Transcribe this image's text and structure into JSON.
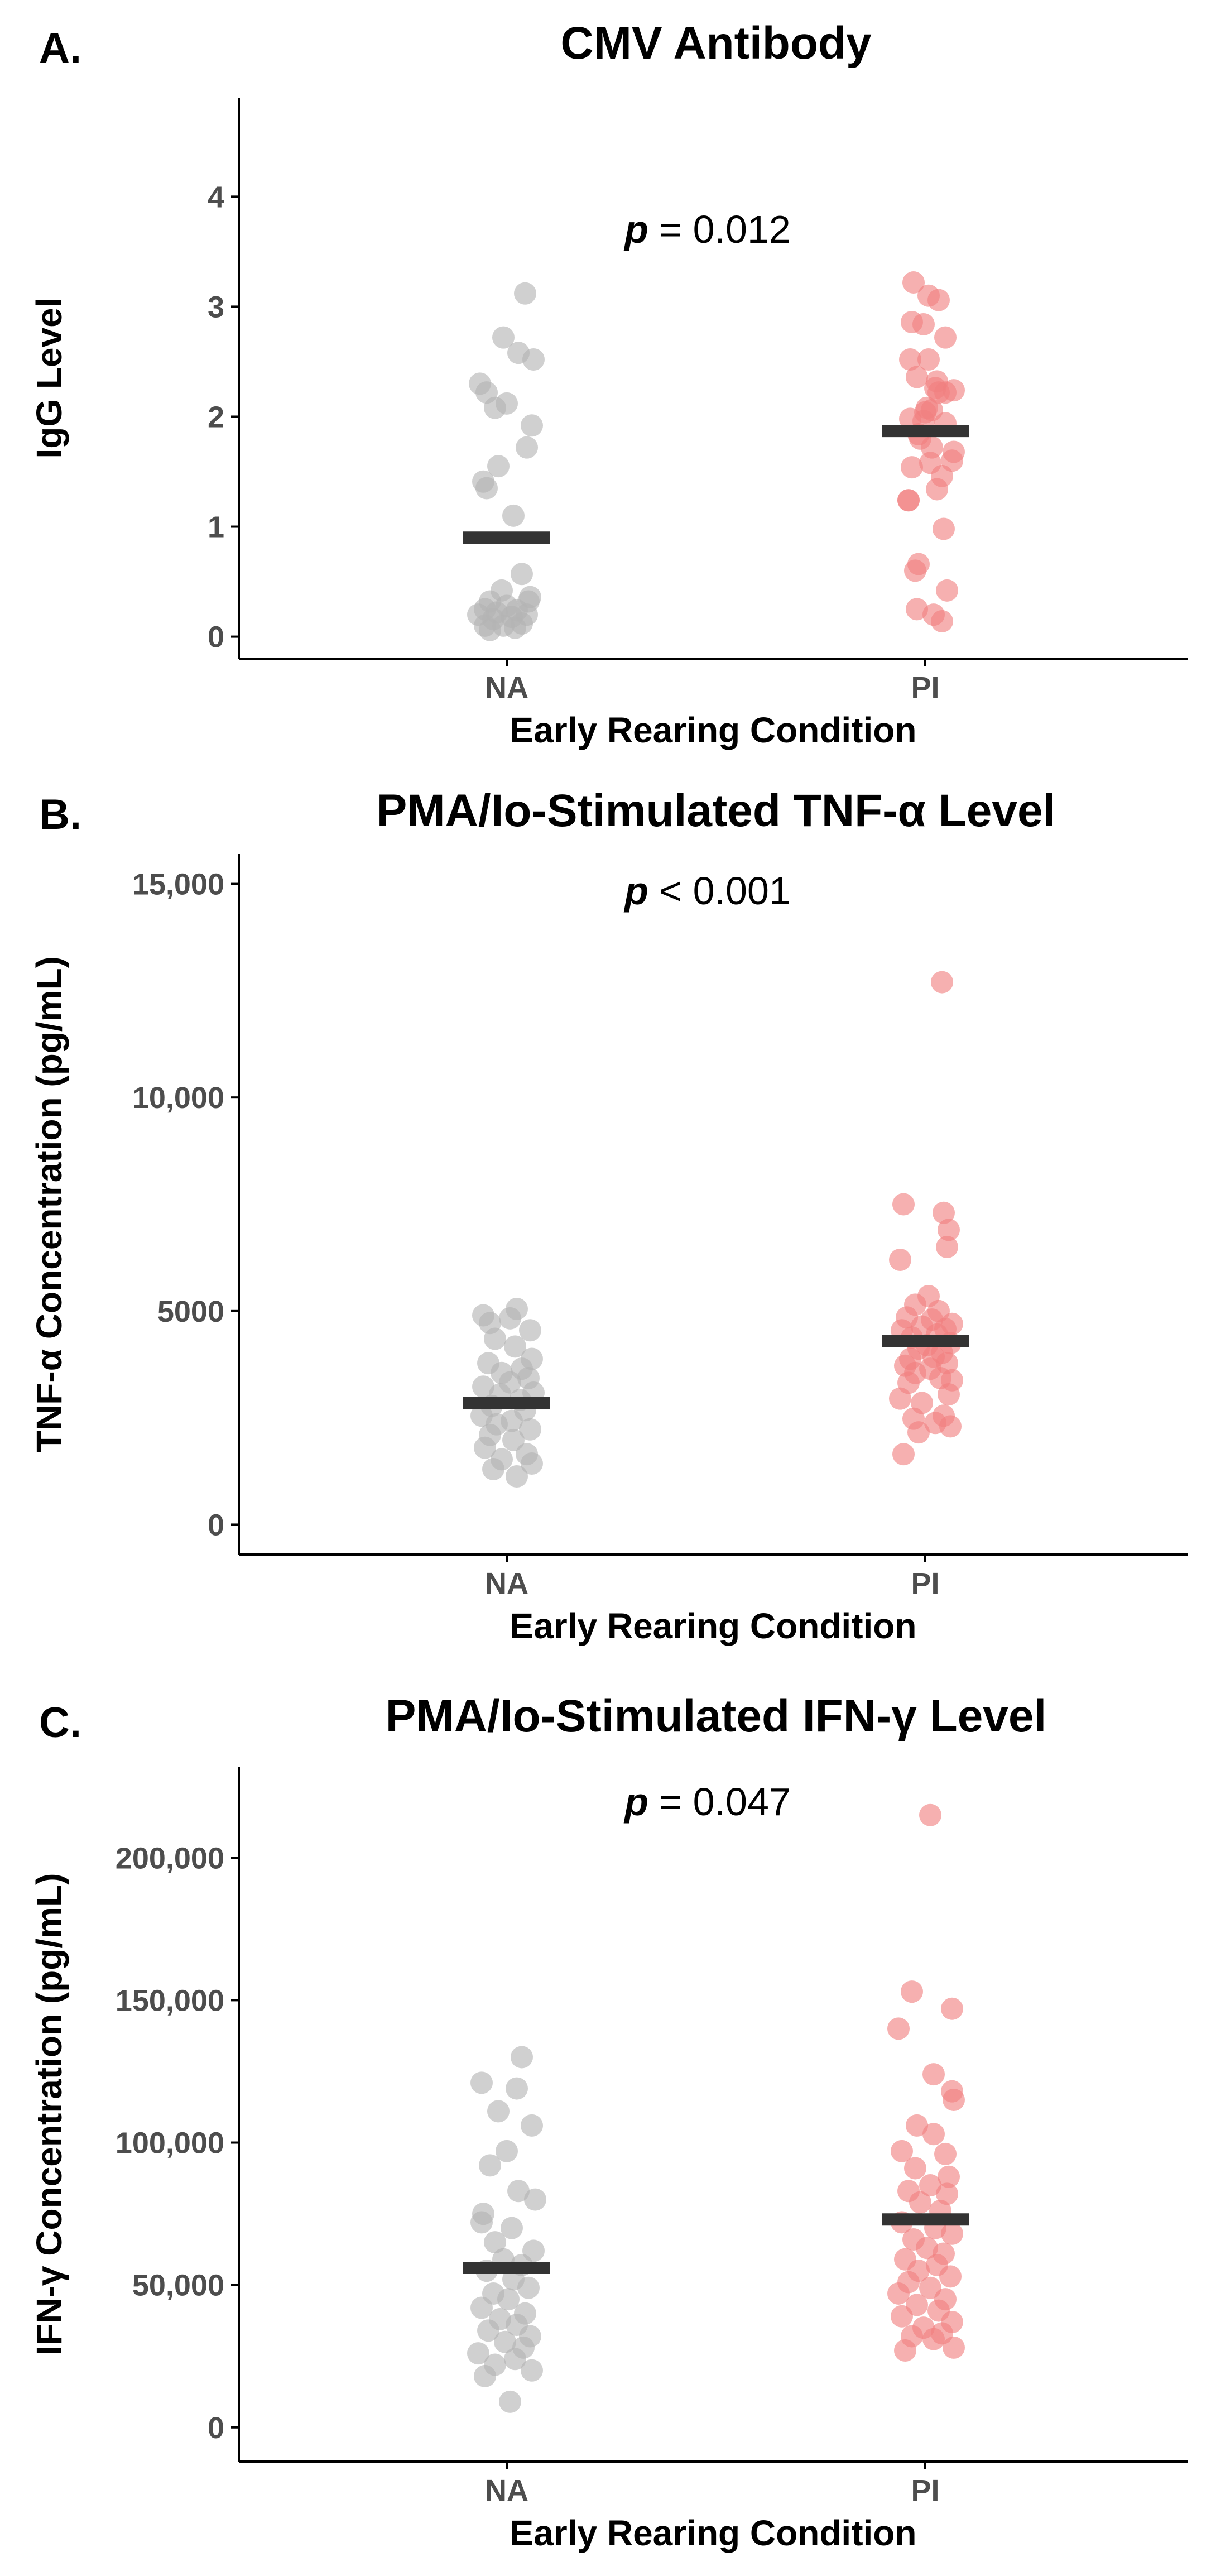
{
  "colors": {
    "NA": "#b3b3b3",
    "PI": "#f08080",
    "mean": "#333333"
  },
  "chart_data": [
    {
      "type": "scatter",
      "panel_label": "A.",
      "title": "CMV Antibody",
      "xlabel": "Early Rearing Condition",
      "ylabel": "IgG Level",
      "categories": [
        "NA",
        "PI"
      ],
      "ylim": [
        -0.2,
        4.9
      ],
      "yticks": [
        0,
        1,
        2,
        3,
        4
      ],
      "ytick_labels": [
        "0",
        "1",
        "2",
        "3",
        "4"
      ],
      "p_label": "p",
      "p_value": " = 0.012",
      "means": [
        0.9,
        1.87
      ],
      "series": [
        {
          "name": "NA",
          "points": [
            [
              -0.16,
              2.3
            ],
            [
              0.11,
              3.12
            ],
            [
              -0.02,
              2.72
            ],
            [
              0.07,
              2.58
            ],
            [
              0.16,
              2.52
            ],
            [
              -0.12,
              2.22
            ],
            [
              0.0,
              2.12
            ],
            [
              -0.07,
              2.08
            ],
            [
              0.15,
              1.92
            ],
            [
              0.12,
              1.72
            ],
            [
              -0.05,
              1.55
            ],
            [
              -0.14,
              1.41
            ],
            [
              -0.12,
              1.35
            ],
            [
              0.04,
              1.1
            ],
            [
              0.09,
              0.57
            ],
            [
              -0.03,
              0.42
            ],
            [
              0.14,
              0.36
            ],
            [
              0.13,
              0.32
            ],
            [
              -0.1,
              0.32
            ],
            [
              0.0,
              0.28
            ],
            [
              -0.13,
              0.25
            ],
            [
              0.06,
              0.24
            ],
            [
              -0.06,
              0.22
            ],
            [
              0.12,
              0.2
            ],
            [
              -0.17,
              0.2
            ],
            [
              0.03,
              0.18
            ],
            [
              -0.08,
              0.16
            ],
            [
              0.09,
              0.12
            ],
            [
              -0.13,
              0.1
            ],
            [
              -0.02,
              0.1
            ],
            [
              0.05,
              0.08
            ],
            [
              -0.1,
              0.06
            ]
          ]
        },
        {
          "name": "PI",
          "points": [
            [
              -0.07,
              3.22
            ],
            [
              0.02,
              3.1
            ],
            [
              0.08,
              3.06
            ],
            [
              -0.08,
              2.86
            ],
            [
              -0.01,
              2.84
            ],
            [
              0.12,
              2.72
            ],
            [
              -0.09,
              2.52
            ],
            [
              0.02,
              2.52
            ],
            [
              -0.05,
              2.36
            ],
            [
              0.07,
              2.32
            ],
            [
              0.06,
              2.26
            ],
            [
              0.17,
              2.24
            ],
            [
              0.08,
              2.22
            ],
            [
              0.12,
              2.22
            ],
            [
              0.01,
              2.08
            ],
            [
              0.04,
              2.06
            ],
            [
              0.0,
              2.04
            ],
            [
              -0.09,
              1.98
            ],
            [
              -0.01,
              1.96
            ],
            [
              0.12,
              1.94
            ],
            [
              -0.04,
              1.84
            ],
            [
              -0.03,
              1.8
            ],
            [
              0.04,
              1.72
            ],
            [
              0.17,
              1.68
            ],
            [
              0.16,
              1.6
            ],
            [
              0.03,
              1.58
            ],
            [
              -0.08,
              1.54
            ],
            [
              0.1,
              1.46
            ],
            [
              0.07,
              1.34
            ],
            [
              -0.1,
              1.24
            ],
            [
              -0.1,
              1.24
            ],
            [
              0.11,
              0.98
            ],
            [
              -0.04,
              0.66
            ],
            [
              -0.06,
              0.6
            ],
            [
              0.13,
              0.42
            ],
            [
              -0.05,
              0.25
            ],
            [
              0.05,
              0.2
            ],
            [
              0.1,
              0.14
            ]
          ]
        }
      ]
    },
    {
      "type": "scatter",
      "panel_label": "B.",
      "title": "PMA/Io-Stimulated TNF-α Level",
      "xlabel": "Early Rearing Condition",
      "ylabel": "TNF-α Concentration (pg/mL)",
      "categories": [
        "NA",
        "PI"
      ],
      "ylim": [
        -700,
        15700
      ],
      "yticks": [
        0,
        5000,
        10000,
        15000
      ],
      "ytick_labels": [
        "0",
        "5000",
        "10,000",
        "15,000"
      ],
      "p_label": "p",
      "p_value": " < 0.001",
      "means": [
        2850,
        4300
      ],
      "series": [
        {
          "name": "NA",
          "points": [
            [
              0.06,
              5050
            ],
            [
              -0.14,
              4900
            ],
            [
              0.02,
              4830
            ],
            [
              -0.1,
              4720
            ],
            [
              0.14,
              4550
            ],
            [
              -0.07,
              4350
            ],
            [
              0.05,
              4170
            ],
            [
              0.15,
              3880
            ],
            [
              -0.11,
              3780
            ],
            [
              0.09,
              3650
            ],
            [
              -0.03,
              3550
            ],
            [
              0.13,
              3430
            ],
            [
              0.02,
              3330
            ],
            [
              -0.14,
              3230
            ],
            [
              0.16,
              3090
            ],
            [
              -0.04,
              3050
            ],
            [
              0.08,
              2920
            ],
            [
              -0.09,
              2780
            ],
            [
              0.11,
              2680
            ],
            [
              -0.15,
              2550
            ],
            [
              0.03,
              2430
            ],
            [
              -0.06,
              2350
            ],
            [
              0.14,
              2230
            ],
            [
              -0.1,
              2100
            ],
            [
              0.04,
              1980
            ],
            [
              -0.13,
              1800
            ],
            [
              0.12,
              1650
            ],
            [
              -0.03,
              1530
            ],
            [
              0.15,
              1430
            ],
            [
              -0.08,
              1300
            ],
            [
              0.06,
              1130
            ]
          ]
        },
        {
          "name": "PI",
          "points": [
            [
              0.1,
              12700
            ],
            [
              -0.13,
              7500
            ],
            [
              0.11,
              7300
            ],
            [
              0.14,
              6900
            ],
            [
              -0.15,
              6200
            ],
            [
              0.13,
              6500
            ],
            [
              0.02,
              5350
            ],
            [
              -0.06,
              5150
            ],
            [
              0.08,
              5000
            ],
            [
              -0.11,
              4850
            ],
            [
              0.04,
              4800
            ],
            [
              0.16,
              4700
            ],
            [
              -0.02,
              4640
            ],
            [
              0.12,
              4580
            ],
            [
              -0.14,
              4550
            ],
            [
              0.07,
              4450
            ],
            [
              -0.08,
              4380
            ],
            [
              0.15,
              4250
            ],
            [
              0.01,
              4200
            ],
            [
              -0.04,
              4120
            ],
            [
              0.1,
              4020
            ],
            [
              0.05,
              3930
            ],
            [
              -0.09,
              3880
            ],
            [
              0.13,
              3780
            ],
            [
              -0.12,
              3720
            ],
            [
              0.03,
              3650
            ],
            [
              -0.06,
              3550
            ],
            [
              0.09,
              3430
            ],
            [
              0.16,
              3380
            ],
            [
              -0.1,
              3320
            ],
            [
              0.14,
              3050
            ],
            [
              -0.15,
              2950
            ],
            [
              -0.02,
              2850
            ],
            [
              0.11,
              2550
            ],
            [
              -0.07,
              2480
            ],
            [
              0.06,
              2380
            ],
            [
              0.15,
              2300
            ],
            [
              -0.04,
              2160
            ],
            [
              -0.13,
              1650
            ]
          ]
        }
      ]
    },
    {
      "type": "scatter",
      "panel_label": "C.",
      "title": "PMA/Io-Stimulated IFN-γ Level",
      "xlabel": "Early Rearing Condition",
      "ylabel": "IFN-γ Concentration (pg/mL)",
      "categories": [
        "NA",
        "PI"
      ],
      "ylim": [
        -12000,
        232000
      ],
      "yticks": [
        0,
        50000,
        100000,
        150000,
        200000
      ],
      "ytick_labels": [
        "0",
        "50,000",
        "100,000",
        "150,000",
        "200,000"
      ],
      "p_label": "p",
      "p_value": " = 0.047",
      "means": [
        56000,
        73000
      ],
      "series": [
        {
          "name": "NA",
          "points": [
            [
              0.09,
              130000
            ],
            [
              -0.15,
              121000
            ],
            [
              0.06,
              119000
            ],
            [
              -0.05,
              111000
            ],
            [
              0.15,
              106000
            ],
            [
              0.0,
              97000
            ],
            [
              -0.1,
              92000
            ],
            [
              0.07,
              83000
            ],
            [
              0.17,
              80000
            ],
            [
              -0.14,
              75000
            ],
            [
              -0.15,
              72000
            ],
            [
              0.03,
              70000
            ],
            [
              -0.07,
              65000
            ],
            [
              0.16,
              62000
            ],
            [
              -0.02,
              59000
            ],
            [
              0.09,
              57000
            ],
            [
              -0.12,
              55000
            ],
            [
              0.04,
              52000
            ],
            [
              0.13,
              49000
            ],
            [
              -0.08,
              47000
            ],
            [
              0.01,
              45000
            ],
            [
              -0.15,
              42000
            ],
            [
              0.11,
              40000
            ],
            [
              -0.04,
              38000
            ],
            [
              0.06,
              36000
            ],
            [
              -0.11,
              34000
            ],
            [
              0.14,
              32000
            ],
            [
              -0.01,
              30000
            ],
            [
              0.1,
              28000
            ],
            [
              -0.17,
              26000
            ],
            [
              0.05,
              24000
            ],
            [
              -0.07,
              22000
            ],
            [
              0.15,
              20000
            ],
            [
              -0.13,
              18000
            ],
            [
              0.02,
              9000
            ]
          ]
        },
        {
          "name": "PI",
          "points": [
            [
              0.03,
              215000
            ],
            [
              -0.08,
              153000
            ],
            [
              0.16,
              147000
            ],
            [
              -0.16,
              140000
            ],
            [
              0.05,
              124000
            ],
            [
              0.16,
              118000
            ],
            [
              0.17,
              115000
            ],
            [
              -0.05,
              106000
            ],
            [
              0.05,
              103000
            ],
            [
              -0.14,
              97000
            ],
            [
              0.12,
              96000
            ],
            [
              -0.06,
              91000
            ],
            [
              0.14,
              88000
            ],
            [
              0.03,
              85000
            ],
            [
              -0.1,
              83000
            ],
            [
              0.13,
              82000
            ],
            [
              -0.03,
              79000
            ],
            [
              0.09,
              76000
            ],
            [
              -0.14,
              72000
            ],
            [
              0.06,
              70000
            ],
            [
              0.16,
              68000
            ],
            [
              -0.07,
              66000
            ],
            [
              0.01,
              63000
            ],
            [
              0.11,
              61000
            ],
            [
              -0.12,
              59000
            ],
            [
              0.07,
              57000
            ],
            [
              -0.04,
              55000
            ],
            [
              0.15,
              53000
            ],
            [
              -0.1,
              51000
            ],
            [
              0.03,
              49000
            ],
            [
              -0.16,
              47000
            ],
            [
              0.12,
              45000
            ],
            [
              -0.05,
              43000
            ],
            [
              0.08,
              41000
            ],
            [
              -0.14,
              39000
            ],
            [
              0.16,
              37000
            ],
            [
              -0.01,
              35000
            ],
            [
              0.1,
              33000
            ],
            [
              -0.08,
              32000
            ],
            [
              0.05,
              31000
            ],
            [
              0.17,
              28000
            ],
            [
              -0.12,
              27000
            ]
          ]
        }
      ]
    }
  ]
}
